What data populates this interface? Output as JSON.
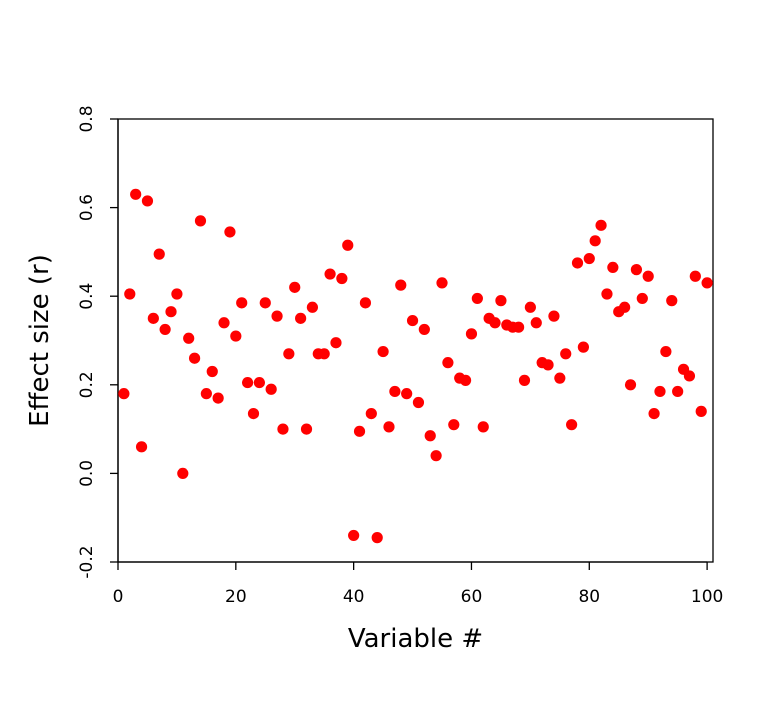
{
  "chart_data": {
    "type": "scatter",
    "xlabel": "Variable #",
    "ylabel": "Effect size (r)",
    "xlim": [
      0,
      101
    ],
    "ylim": [
      -0.2,
      0.8
    ],
    "x_ticks": [
      "0",
      "20",
      "40",
      "60",
      "80",
      "100"
    ],
    "y_ticks": [
      "-0.2",
      "0.0",
      "0.2",
      "0.4",
      "0.6",
      "0.8"
    ],
    "grid": false,
    "marker_color": "#ff0000",
    "series": [
      {
        "x": [
          1,
          2,
          3,
          4,
          5,
          6,
          7,
          8,
          9,
          10,
          11,
          12,
          13,
          14,
          15,
          16,
          17,
          18,
          19,
          20,
          21,
          22,
          23,
          24,
          25,
          26,
          27,
          28,
          29,
          30,
          31,
          32,
          33,
          34,
          35,
          36,
          37,
          38,
          39,
          40,
          41,
          42,
          43,
          44,
          45,
          46,
          47,
          48,
          49,
          50,
          51,
          52,
          53,
          54,
          55,
          56,
          57,
          58,
          59,
          60,
          61,
          62,
          63,
          64,
          65,
          66,
          67,
          68,
          69,
          70,
          71,
          72,
          73,
          74,
          75,
          76,
          77,
          78,
          79,
          80,
          81,
          82,
          83,
          84,
          85,
          86,
          87,
          88,
          89,
          90,
          91,
          92,
          93,
          94,
          95,
          96,
          97,
          98,
          99,
          100
        ],
        "y": [
          0.18,
          0.405,
          0.63,
          0.06,
          0.615,
          0.35,
          0.495,
          0.325,
          0.365,
          0.405,
          0.0,
          0.305,
          0.26,
          0.57,
          0.18,
          0.23,
          0.17,
          0.34,
          0.545,
          0.31,
          0.385,
          0.205,
          0.135,
          0.205,
          0.385,
          0.19,
          0.355,
          0.1,
          0.27,
          0.42,
          0.35,
          0.1,
          0.375,
          0.27,
          0.27,
          0.45,
          0.295,
          0.44,
          0.515,
          -0.14,
          0.095,
          0.385,
          0.135,
          -0.145,
          0.275,
          0.105,
          0.185,
          0.425,
          0.18,
          0.345,
          0.16,
          0.325,
          0.085,
          0.04,
          0.43,
          0.25,
          0.11,
          0.215,
          0.21,
          0.315,
          0.395,
          0.105,
          0.35,
          0.34,
          0.39,
          0.335,
          0.33,
          0.33,
          0.21,
          0.375,
          0.34,
          0.25,
          0.245,
          0.355,
          0.215,
          0.27,
          0.11,
          0.475,
          0.285,
          0.485,
          0.525,
          0.56,
          0.405,
          0.465,
          0.365,
          0.375,
          0.2,
          0.46,
          0.395,
          0.445,
          0.135,
          0.185,
          0.275,
          0.39,
          0.185,
          0.235,
          0.22,
          0.445,
          0.14,
          0.43
        ]
      }
    ]
  }
}
